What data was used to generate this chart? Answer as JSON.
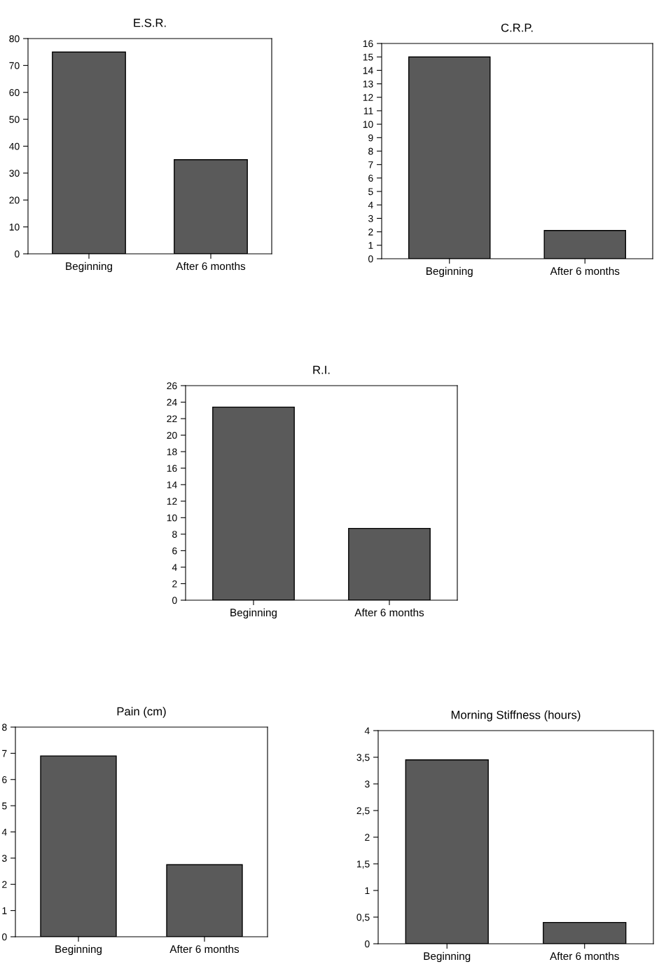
{
  "chart_data": [
    {
      "type": "bar",
      "title": "E.S.R.",
      "categories": [
        "Beginning",
        "After 6 months"
      ],
      "values": [
        75,
        35
      ],
      "color": "#5a5a5a",
      "ylim": [
        0,
        80
      ],
      "yticks": [
        0,
        10,
        20,
        30,
        40,
        50,
        60,
        70,
        80
      ],
      "grid": false,
      "legend": false
    },
    {
      "type": "bar",
      "title": "C.R.P.",
      "categories": [
        "Beginning",
        "After 6 months"
      ],
      "values": [
        15,
        2.1
      ],
      "color": "#5a5a5a",
      "ylim": [
        0,
        16
      ],
      "yticks": [
        0,
        1,
        2,
        3,
        4,
        5,
        6,
        7,
        8,
        9,
        10,
        11,
        12,
        13,
        14,
        15,
        16
      ],
      "grid": false,
      "legend": false
    },
    {
      "type": "bar",
      "title": "R.I.",
      "categories": [
        "Beginning",
        "After 6 months"
      ],
      "values": [
        23.4,
        8.7
      ],
      "color": "#5a5a5a",
      "ylim": [
        0,
        26
      ],
      "yticks": [
        0,
        2,
        4,
        6,
        8,
        10,
        12,
        14,
        16,
        18,
        20,
        22,
        24,
        26
      ],
      "grid": false,
      "legend": false
    },
    {
      "type": "bar",
      "title": "Pain (cm)",
      "categories": [
        "Beginning",
        "After 6 months"
      ],
      "values": [
        6.9,
        2.75
      ],
      "color": "#5a5a5a",
      "ylim": [
        0,
        8
      ],
      "yticks": [
        0,
        1,
        2,
        3,
        4,
        5,
        6,
        7,
        8
      ],
      "grid": false,
      "legend": false
    },
    {
      "type": "bar",
      "title": "Morning Stiffness (hours)",
      "categories": [
        "Beginning",
        "After 6 months"
      ],
      "values": [
        3.45,
        0.4
      ],
      "color": "#5a5a5a",
      "ylim": [
        0,
        4
      ],
      "yticks": [
        0,
        {
          "value": 0.5,
          "label": "0,5"
        },
        1,
        {
          "value": 1.5,
          "label": "1,5"
        },
        2,
        {
          "value": 2.5,
          "label": "2,5"
        },
        3,
        {
          "value": 3.5,
          "label": "3,5"
        },
        4
      ],
      "grid": false,
      "legend": false
    }
  ]
}
